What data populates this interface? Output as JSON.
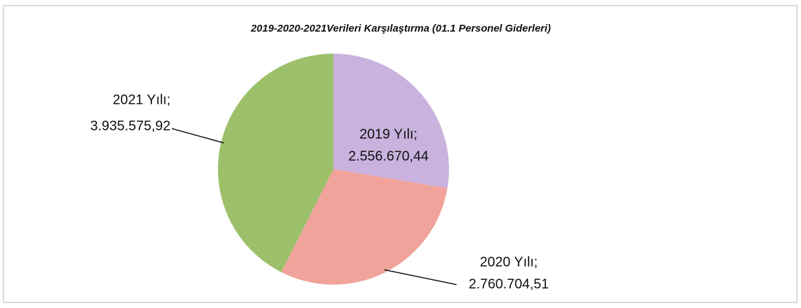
{
  "chart_data": {
    "type": "pie",
    "title": "2019-2020-2021Verileri  Karşılaştırma  (01.1 Personel Giderleri)",
    "categories": [
      "2019 Yılı;",
      "2020 Yılı;",
      "2021 Yılı;"
    ],
    "values": [
      2556670.44,
      2760704.51,
      3935575.92
    ],
    "value_labels": [
      "2.556.670,44",
      "2.760.704,51",
      "3.935.575,92"
    ],
    "colors": [
      "#c9b2de",
      "#f0a39a",
      "#9cbf6a"
    ]
  }
}
